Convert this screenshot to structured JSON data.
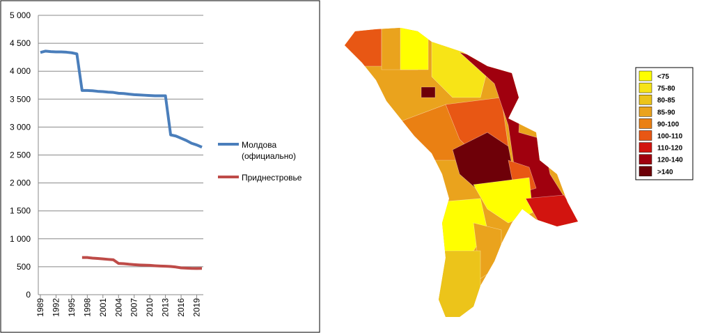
{
  "chart_data": [
    {
      "type": "line",
      "x": [
        1989,
        1990,
        1991,
        1992,
        1993,
        1994,
        1995,
        1996,
        1997,
        1998,
        1999,
        2000,
        2001,
        2002,
        2003,
        2004,
        2005,
        2006,
        2007,
        2008,
        2009,
        2010,
        2011,
        2012,
        2013,
        2014,
        2015,
        2016,
        2017,
        2018,
        2019,
        2020
      ],
      "series": [
        {
          "name": "Молдова (официально)",
          "color": "#4a7ebb",
          "values": [
            4335,
            4360,
            4350,
            4345,
            4345,
            4340,
            4330,
            4310,
            3655,
            3655,
            3650,
            3640,
            3635,
            3625,
            3620,
            3605,
            3600,
            3590,
            3580,
            3575,
            3570,
            3565,
            3560,
            3560,
            3560,
            2860,
            2840,
            2800,
            2760,
            2710,
            2680,
            2640
          ]
        },
        {
          "name": "Приднестровье",
          "color": "#be4b48",
          "values": [
            null,
            null,
            null,
            null,
            null,
            null,
            null,
            null,
            665,
            665,
            655,
            648,
            640,
            632,
            625,
            560,
            555,
            545,
            538,
            532,
            528,
            525,
            518,
            513,
            510,
            505,
            495,
            480,
            475,
            470,
            469,
            470
          ]
        }
      ],
      "xlim": [
        1989,
        2020
      ],
      "xticks": [
        1989,
        1992,
        1995,
        1998,
        2001,
        2004,
        2007,
        2010,
        2013,
        2016,
        2019
      ],
      "ylim": [
        0,
        5000
      ],
      "yticks": [
        0,
        500,
        {
          "value": 1000,
          "label": "1 000"
        },
        {
          "value": 1500,
          "label": "1 500"
        },
        {
          "value": 2000,
          "label": "2 000"
        },
        {
          "value": 2500,
          "label": "2 500"
        },
        {
          "value": 3000,
          "label": "3 000"
        },
        {
          "value": 3500,
          "label": "3 500"
        },
        {
          "value": 4000,
          "label": "4 000"
        },
        {
          "value": 4500,
          "label": "4 500"
        },
        {
          "value": 5000,
          "label": "5 000"
        }
      ],
      "grid": true
    },
    {
      "type": "map",
      "legend": {
        "labels": [
          "<75",
          "75-80",
          "80-85",
          "85-90",
          "90-100",
          "100-110",
          "110-120",
          "120-140",
          ">140"
        ],
        "colors": [
          "#ffff00",
          "#f7e417",
          "#ecc41a",
          "#eaa31d",
          "#ea8013",
          "#e85714",
          "#d2140f",
          "#a0000e",
          "#6e0008"
        ]
      }
    }
  ]
}
